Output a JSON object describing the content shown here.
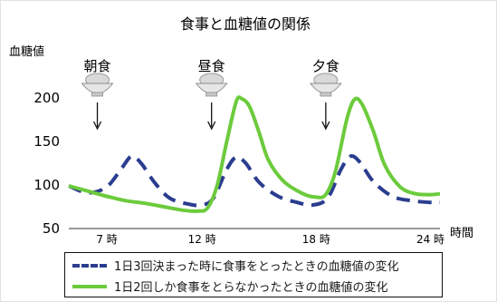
{
  "chart_data": {
    "type": "line",
    "title": "食事と血糖値の関係",
    "ylabel": "血糖値",
    "xlabel": "時間",
    "ylim": [
      50,
      200
    ],
    "xlim": [
      5,
      24.5
    ],
    "yticks": [
      50,
      100,
      150,
      200
    ],
    "xticks": [
      {
        "x": 7,
        "label": "7 時"
      },
      {
        "x": 12,
        "label": "12 時"
      },
      {
        "x": 18,
        "label": "18 時"
      },
      {
        "x": 24,
        "label": "24 時"
      }
    ],
    "grid": false,
    "legend_position": "bottom",
    "meals": [
      {
        "x": 6.5,
        "label": "朝食",
        "icon": "rice-bowl-icon"
      },
      {
        "x": 12.5,
        "label": "昼食",
        "icon": "rice-bowl-icon"
      },
      {
        "x": 18.5,
        "label": "夕食",
        "icon": "rice-bowl-icon"
      }
    ],
    "series": [
      {
        "name": "1日3回決まった時に食事をとったときの血糖値の変化",
        "color": "#2a3d8f",
        "style": "dashed",
        "points": [
          [
            5,
            99
          ],
          [
            6,
            91
          ],
          [
            7,
            98
          ],
          [
            7.8,
            120
          ],
          [
            8.3,
            133
          ],
          [
            8.8,
            125
          ],
          [
            9.5,
            103
          ],
          [
            10.3,
            85
          ],
          [
            11.3,
            78
          ],
          [
            12,
            77
          ],
          [
            12.6,
            85
          ],
          [
            13.3,
            118
          ],
          [
            13.8,
            132
          ],
          [
            14.3,
            125
          ],
          [
            15,
            103
          ],
          [
            16,
            87
          ],
          [
            17,
            80
          ],
          [
            17.8,
            77
          ],
          [
            18.6,
            85
          ],
          [
            19.3,
            118
          ],
          [
            19.8,
            133
          ],
          [
            20.3,
            126
          ],
          [
            21,
            104
          ],
          [
            22,
            87
          ],
          [
            23,
            82
          ],
          [
            24,
            80
          ],
          [
            24.5,
            80
          ]
        ]
      },
      {
        "name": "1日2回しか食事をとらなかったときの血糖値の変化",
        "color": "#6ccb3c",
        "style": "solid",
        "points": [
          [
            5,
            99
          ],
          [
            6,
            93
          ],
          [
            7,
            87
          ],
          [
            8,
            82
          ],
          [
            9,
            79
          ],
          [
            10,
            75
          ],
          [
            11,
            71
          ],
          [
            11.8,
            70
          ],
          [
            12.3,
            74
          ],
          [
            12.8,
            100
          ],
          [
            13.3,
            150
          ],
          [
            13.8,
            196
          ],
          [
            14.1,
            199
          ],
          [
            14.5,
            190
          ],
          [
            15,
            160
          ],
          [
            15.5,
            128
          ],
          [
            16.3,
            104
          ],
          [
            17.3,
            90
          ],
          [
            18,
            86
          ],
          [
            18.5,
            89
          ],
          [
            19,
            115
          ],
          [
            19.6,
            175
          ],
          [
            20,
            198
          ],
          [
            20.4,
            193
          ],
          [
            21,
            162
          ],
          [
            21.6,
            123
          ],
          [
            22.4,
            98
          ],
          [
            23.2,
            90
          ],
          [
            24,
            89
          ],
          [
            24.5,
            90
          ]
        ]
      }
    ]
  }
}
